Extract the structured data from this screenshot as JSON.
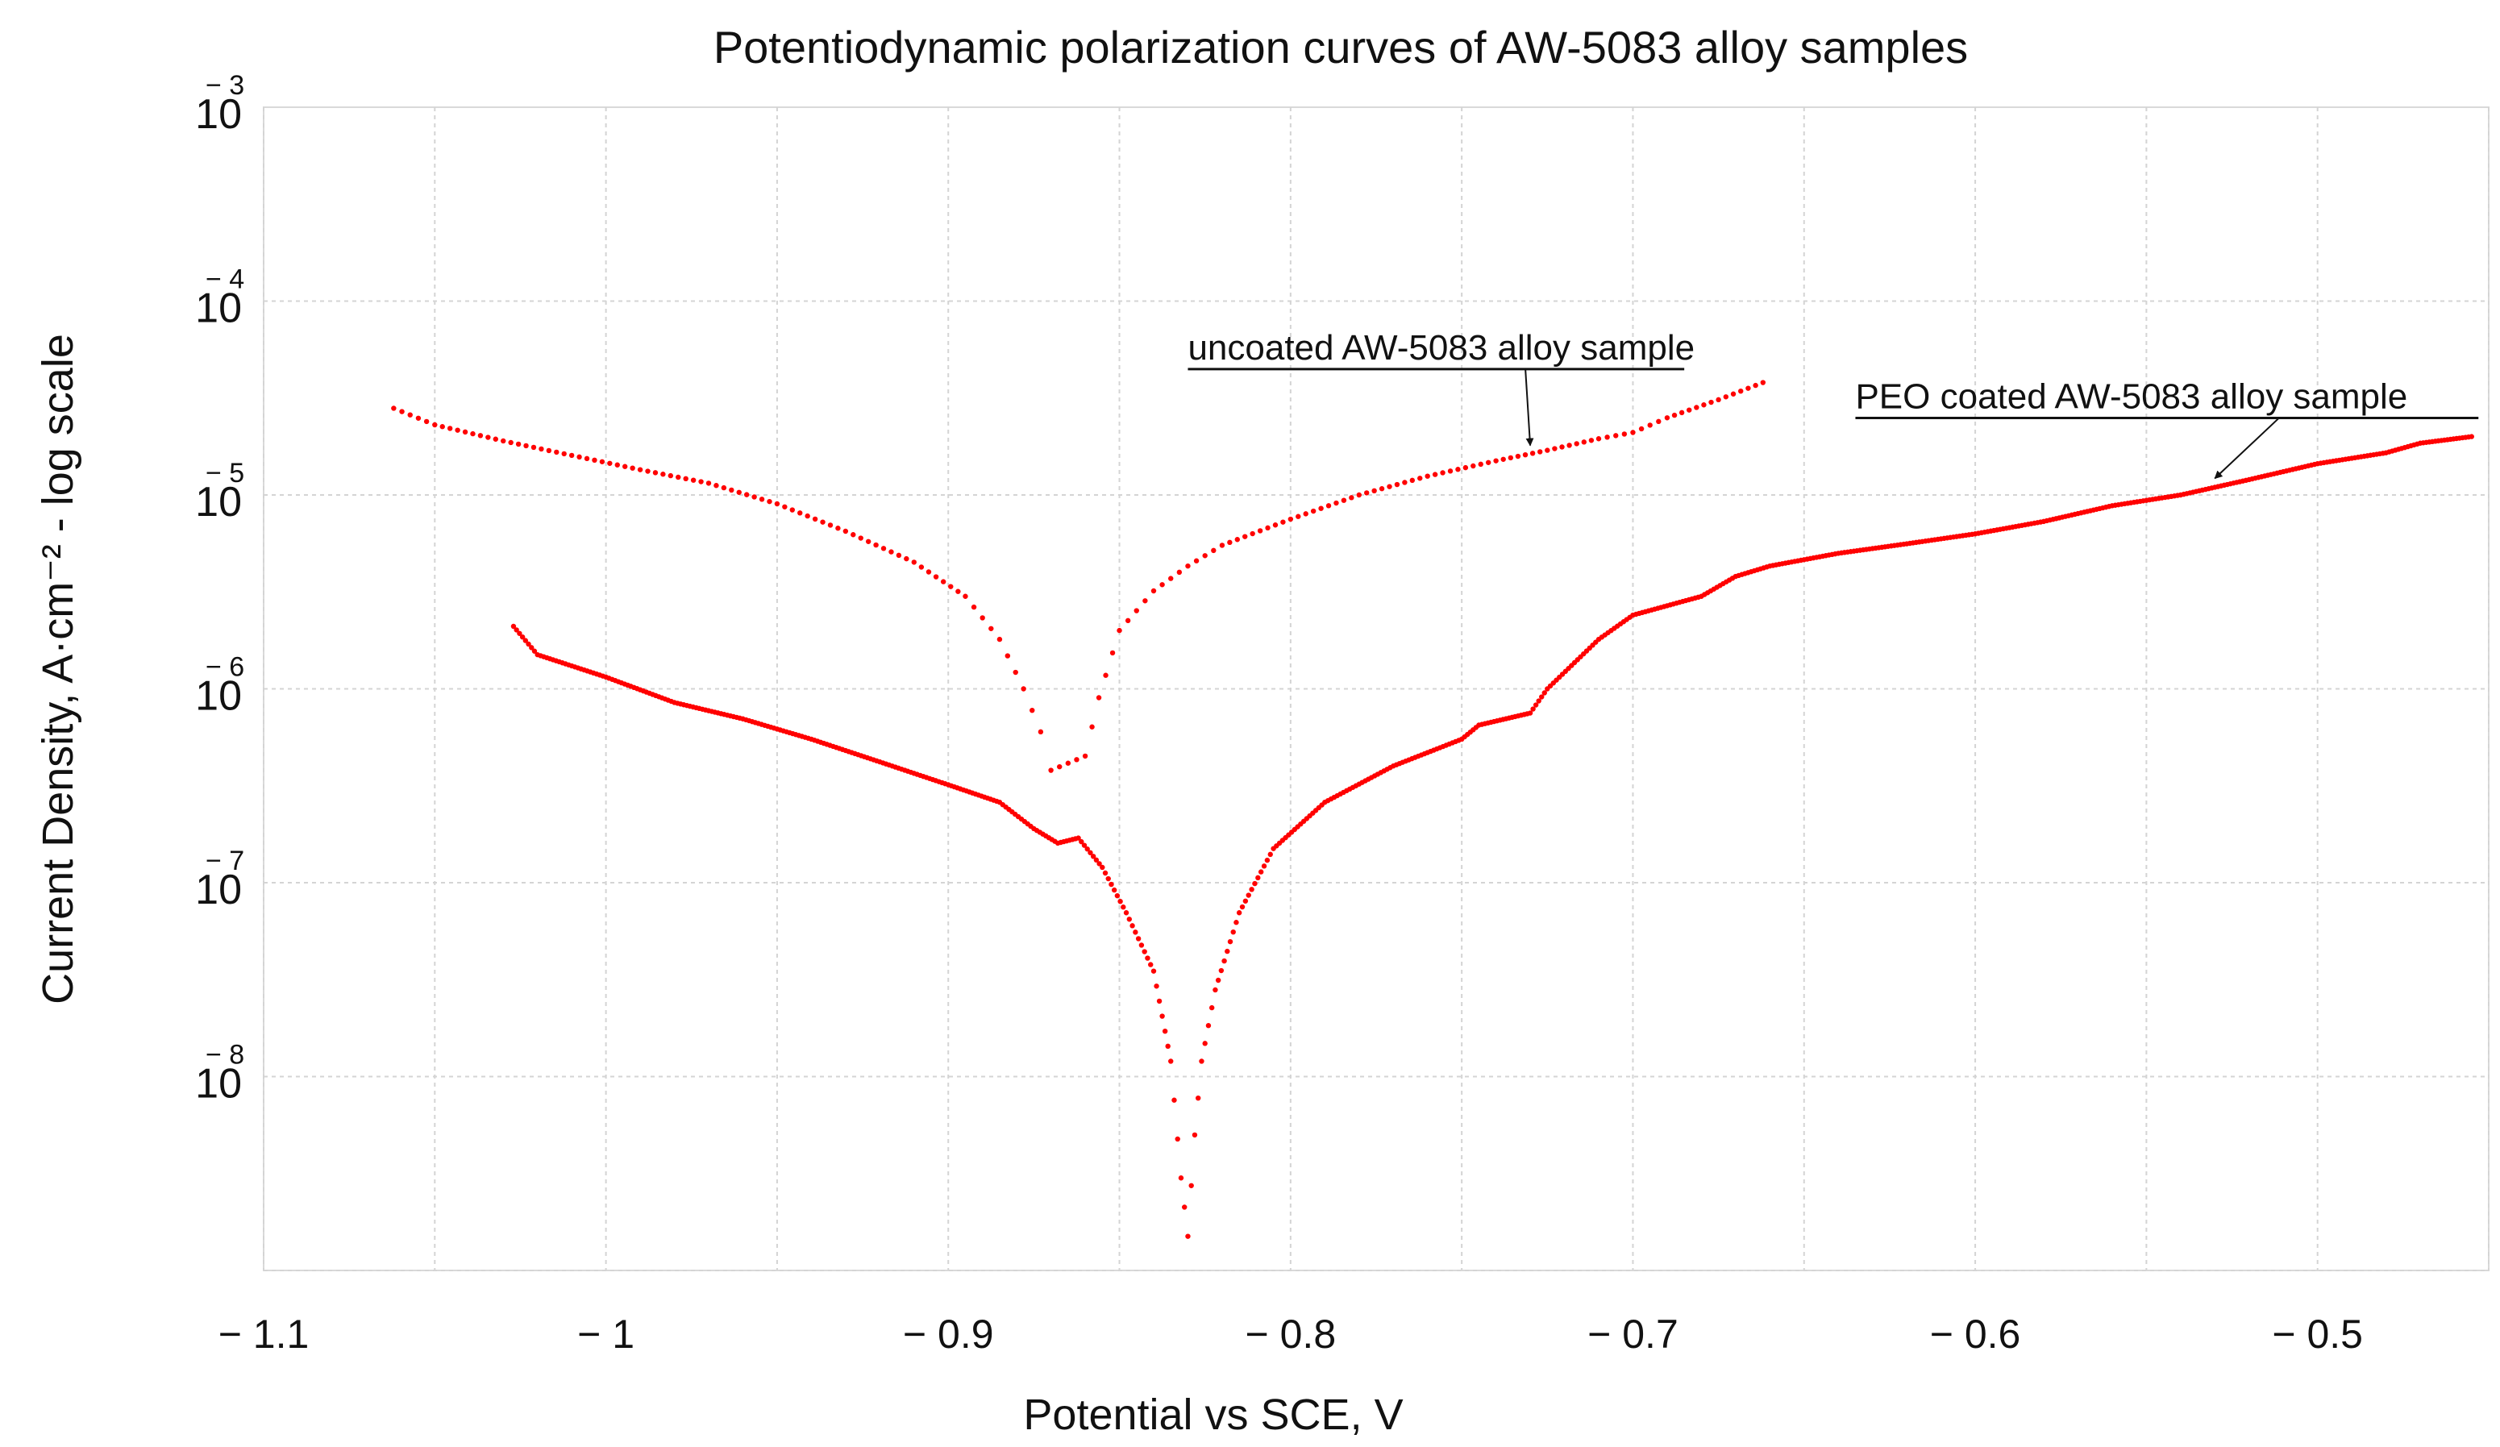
{
  "chart_data": {
    "type": "scatter",
    "title": "Potentiodynamic polarization curves of AW-5083 alloy samples",
    "xlabel": "Potential vs SCE, V",
    "ylabel": "Current Density, A·cm⁻² - log scale",
    "x_range": [
      -1.1,
      -0.45
    ],
    "y_scale": "log",
    "y_range": [
      1e-09,
      0.001
    ],
    "grid": true,
    "x_ticks": [
      {
        "value": -1.1,
        "label": "− 1.1"
      },
      {
        "value": -1.0,
        "label": "− 1"
      },
      {
        "value": -0.9,
        "label": "− 0.9"
      },
      {
        "value": -0.8,
        "label": "− 0.8"
      },
      {
        "value": -0.7,
        "label": "− 0.7"
      },
      {
        "value": -0.6,
        "label": "− 0.6"
      },
      {
        "value": -0.5,
        "label": "− 0.5"
      }
    ],
    "y_ticks": [
      {
        "exp": -3,
        "base": "10",
        "exponent": "− 3"
      },
      {
        "exp": -4,
        "base": "10",
        "exponent": "− 4"
      },
      {
        "exp": -5,
        "base": "10",
        "exponent": "− 5"
      },
      {
        "exp": -6,
        "base": "10",
        "exponent": "− 6"
      },
      {
        "exp": -7,
        "base": "10",
        "exponent": "− 7"
      },
      {
        "exp": -8,
        "base": "10",
        "exponent": "− 8"
      }
    ],
    "series": [
      {
        "name": "uncoated AW-5083 alloy sample",
        "color": "#ff0000",
        "marker_spacing": 0.0023,
        "points": [
          [
            -1.062,
            2.8e-05
          ],
          [
            -1.05,
            2.3e-05
          ],
          [
            -1.03,
            1.9e-05
          ],
          [
            -1.01,
            1.6e-05
          ],
          [
            -0.99,
            1.35e-05
          ],
          [
            -0.97,
            1.15e-05
          ],
          [
            -0.95,
            9e-06
          ],
          [
            -0.93,
            6.5e-06
          ],
          [
            -0.91,
            4.5e-06
          ],
          [
            -0.895,
            3e-06
          ],
          [
            -0.885,
            1.8e-06
          ],
          [
            -0.878,
            1e-06
          ],
          [
            -0.873,
            6e-07
          ],
          [
            -0.87,
            3.8e-07
          ],
          [
            -0.86,
            4.5e-07
          ],
          [
            -0.856,
            9e-07
          ],
          [
            -0.85,
            2e-06
          ],
          [
            -0.84,
            3.2e-06
          ],
          [
            -0.83,
            4.3e-06
          ],
          [
            -0.82,
            5.5e-06
          ],
          [
            -0.8,
            7.5e-06
          ],
          [
            -0.78,
            1e-05
          ],
          [
            -0.76,
            1.25e-05
          ],
          [
            -0.74,
            1.5e-05
          ],
          [
            -0.725,
            1.7e-05
          ],
          [
            -0.71,
            1.95e-05
          ],
          [
            -0.7,
            2.1e-05
          ],
          [
            -0.69,
            2.5e-05
          ],
          [
            -0.675,
            3.1e-05
          ],
          [
            -0.662,
            3.8e-05
          ]
        ]
      },
      {
        "name": "PEO coated AW-5083 alloy sample",
        "color": "#ff0000",
        "marker_spacing": 0.0009,
        "points": [
          [
            -1.027,
            2.1e-06
          ],
          [
            -1.02,
            1.5e-06
          ],
          [
            -1.0,
            1.15e-06
          ],
          [
            -0.98,
            8.5e-07
          ],
          [
            -0.96,
            7e-07
          ],
          [
            -0.94,
            5.5e-07
          ],
          [
            -0.92,
            4.2e-07
          ],
          [
            -0.9,
            3.2e-07
          ],
          [
            -0.885,
            2.6e-07
          ],
          [
            -0.875,
            1.9e-07
          ],
          [
            -0.868,
            1.6e-07
          ],
          [
            -0.862,
            1.7e-07
          ],
          [
            -0.855,
            1.2e-07
          ],
          [
            -0.848,
            7e-08
          ],
          [
            -0.84,
            3.5e-08
          ],
          [
            -0.835,
            1.2e-08
          ],
          [
            -0.832,
            3e-09
          ],
          [
            -0.83,
            1.5e-09
          ],
          [
            -0.828,
            5e-09
          ],
          [
            -0.826,
            1.2e-08
          ],
          [
            -0.822,
            2.8e-08
          ],
          [
            -0.815,
            7e-08
          ],
          [
            -0.805,
            1.5e-07
          ],
          [
            -0.79,
            2.6e-07
          ],
          [
            -0.77,
            4e-07
          ],
          [
            -0.75,
            5.5e-07
          ],
          [
            -0.745,
            6.5e-07
          ],
          [
            -0.73,
            7.5e-07
          ],
          [
            -0.725,
            1e-06
          ],
          [
            -0.71,
            1.8e-06
          ],
          [
            -0.7,
            2.4e-06
          ],
          [
            -0.68,
            3e-06
          ],
          [
            -0.67,
            3.8e-06
          ],
          [
            -0.66,
            4.3e-06
          ],
          [
            -0.64,
            5e-06
          ],
          [
            -0.62,
            5.6e-06
          ],
          [
            -0.6,
            6.3e-06
          ],
          [
            -0.58,
            7.3e-06
          ],
          [
            -0.56,
            8.8e-06
          ],
          [
            -0.54,
            1e-05
          ],
          [
            -0.52,
            1.2e-05
          ],
          [
            -0.5,
            1.45e-05
          ],
          [
            -0.48,
            1.65e-05
          ],
          [
            -0.47,
            1.85e-05
          ],
          [
            -0.455,
            2e-05
          ]
        ]
      }
    ],
    "annotations": [
      {
        "text": "uncoated AW-5083 alloy sample",
        "text_x": -0.83,
        "text_y": 5e-05,
        "line_end_x": -0.685,
        "arrow_to": [
          -0.73,
          1.7e-05
        ]
      },
      {
        "text": "PEO coated AW-5083 alloy sample",
        "text_x": -0.635,
        "text_y": 2.8e-05,
        "line_end_x": -0.453,
        "arrow_to": [
          -0.53,
          1.15e-05
        ]
      }
    ]
  }
}
